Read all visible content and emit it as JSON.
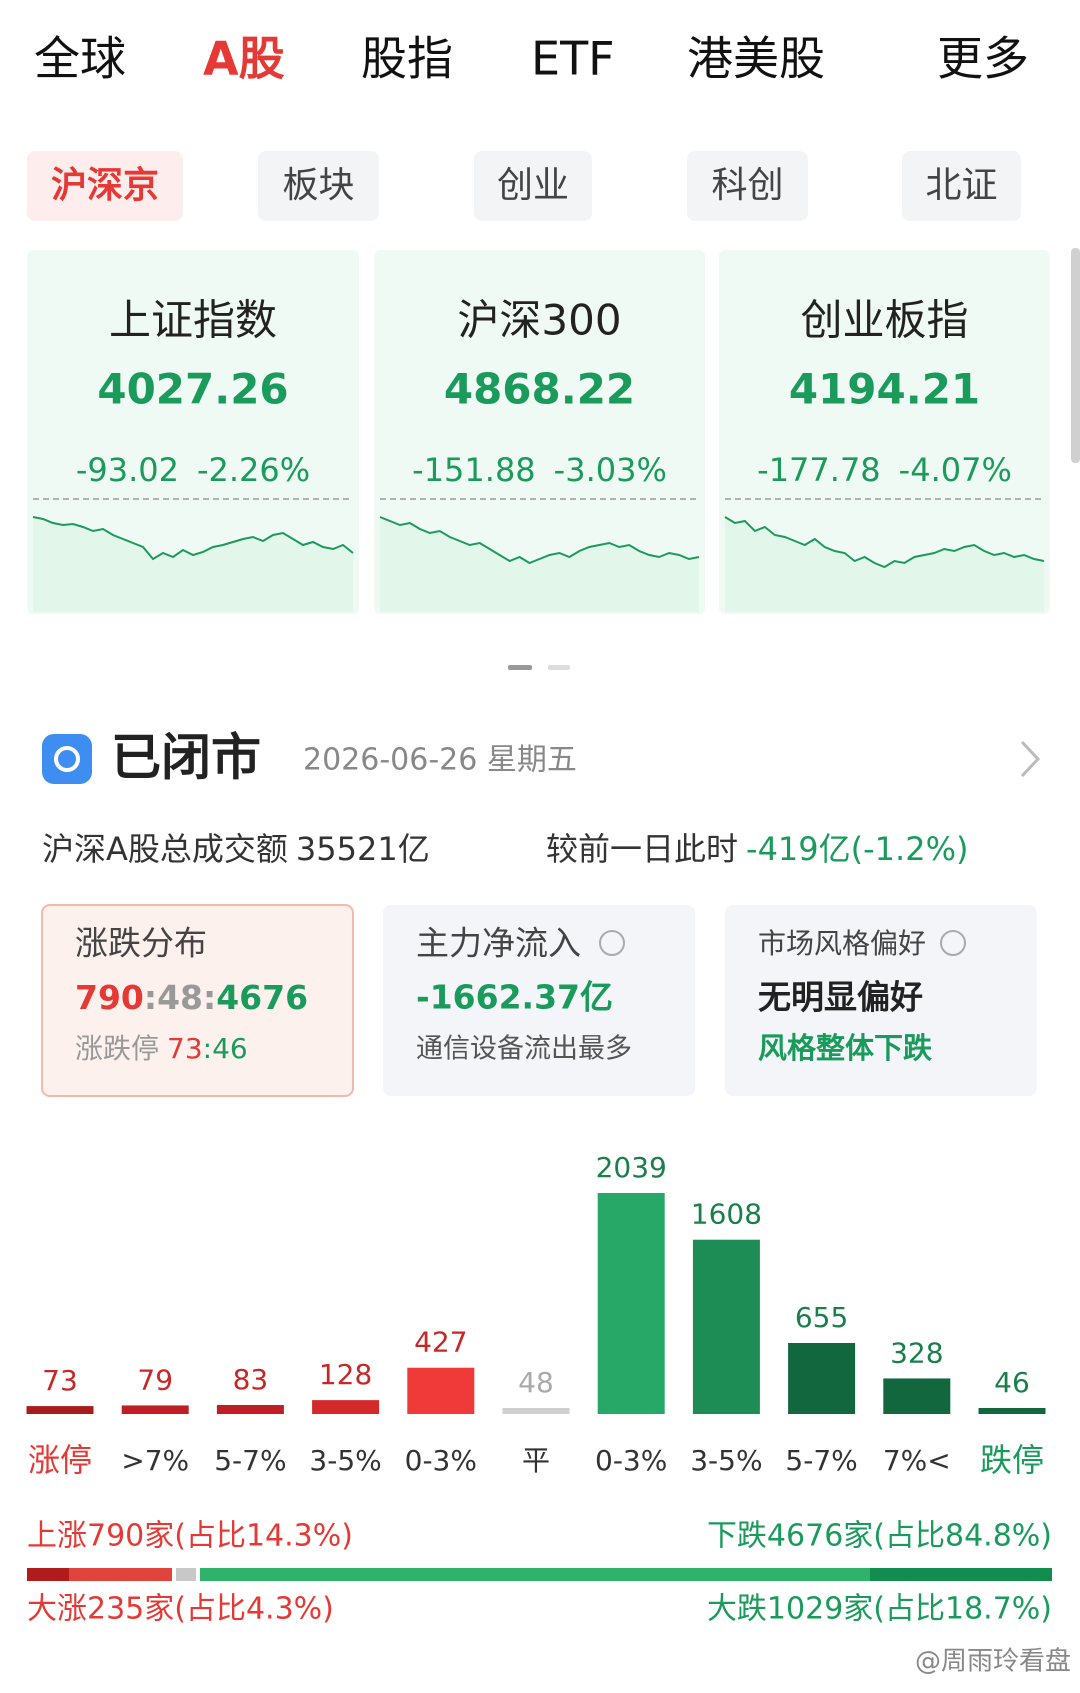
{
  "tabs": [
    "全球",
    "A股",
    "股指",
    "ETF",
    "港美股",
    "更多"
  ],
  "subtabs": [
    "沪深京",
    "板块",
    "创业",
    "科创",
    "北证"
  ],
  "indices": [
    {
      "name": "上证指数",
      "price": "4027.26",
      "change": "-93.02",
      "pct": "-2.26%"
    },
    {
      "name": "沪深300",
      "price": "4868.22",
      "change": "-151.88",
      "pct": "-3.03%"
    },
    {
      "name": "创业板指",
      "price": "4194.21",
      "change": "-177.78",
      "pct": "-4.07%"
    }
  ],
  "status": {
    "title": "已闭市",
    "date": "2026-06-26 星期五"
  },
  "turnover": {
    "label": "沪深A股总成交额",
    "value": "35521亿",
    "compare_label": "较前一日此时",
    "compare_value": "-419亿(-1.2%)"
  },
  "cards": [
    {
      "title": "涨跌分布",
      "ratio": [
        "790",
        ":48:",
        "4676"
      ],
      "limit_label": "涨跌停",
      "limit": [
        "73",
        ":46"
      ]
    },
    {
      "title": "主力净流入",
      "value": "-1662.37亿",
      "note": "通信设备流出最多"
    },
    {
      "title": "市场风格偏好",
      "value": "无明显偏好",
      "note": "风格整体下跌"
    }
  ],
  "chart_data": {
    "type": "bar",
    "categories": [
      "涨停",
      ">7%",
      "5-7%",
      "3-5%",
      "0-3%",
      "平",
      "0-3%",
      "3-5%",
      "5-7%",
      "7%<",
      "跌停"
    ],
    "values": [
      73,
      79,
      83,
      128,
      427,
      48,
      2039,
      1608,
      655,
      328,
      46
    ],
    "colors": [
      "#a81c1c",
      "#bf1e24",
      "#bf1e24",
      "#d42a2a",
      "#f03a3a",
      "#cfcfcf",
      "#27a866",
      "#1e8c55",
      "#12673f",
      "#12673f",
      "#12673f"
    ]
  },
  "summary": {
    "up": "上涨790家(占比14.3%)",
    "down": "下跌4676家(占比84.8%)",
    "big_up": "大涨235家(占比4.3%)",
    "big_down": "大跌1029家(占比18.7%)"
  },
  "watermark": "@周雨玲看盘"
}
